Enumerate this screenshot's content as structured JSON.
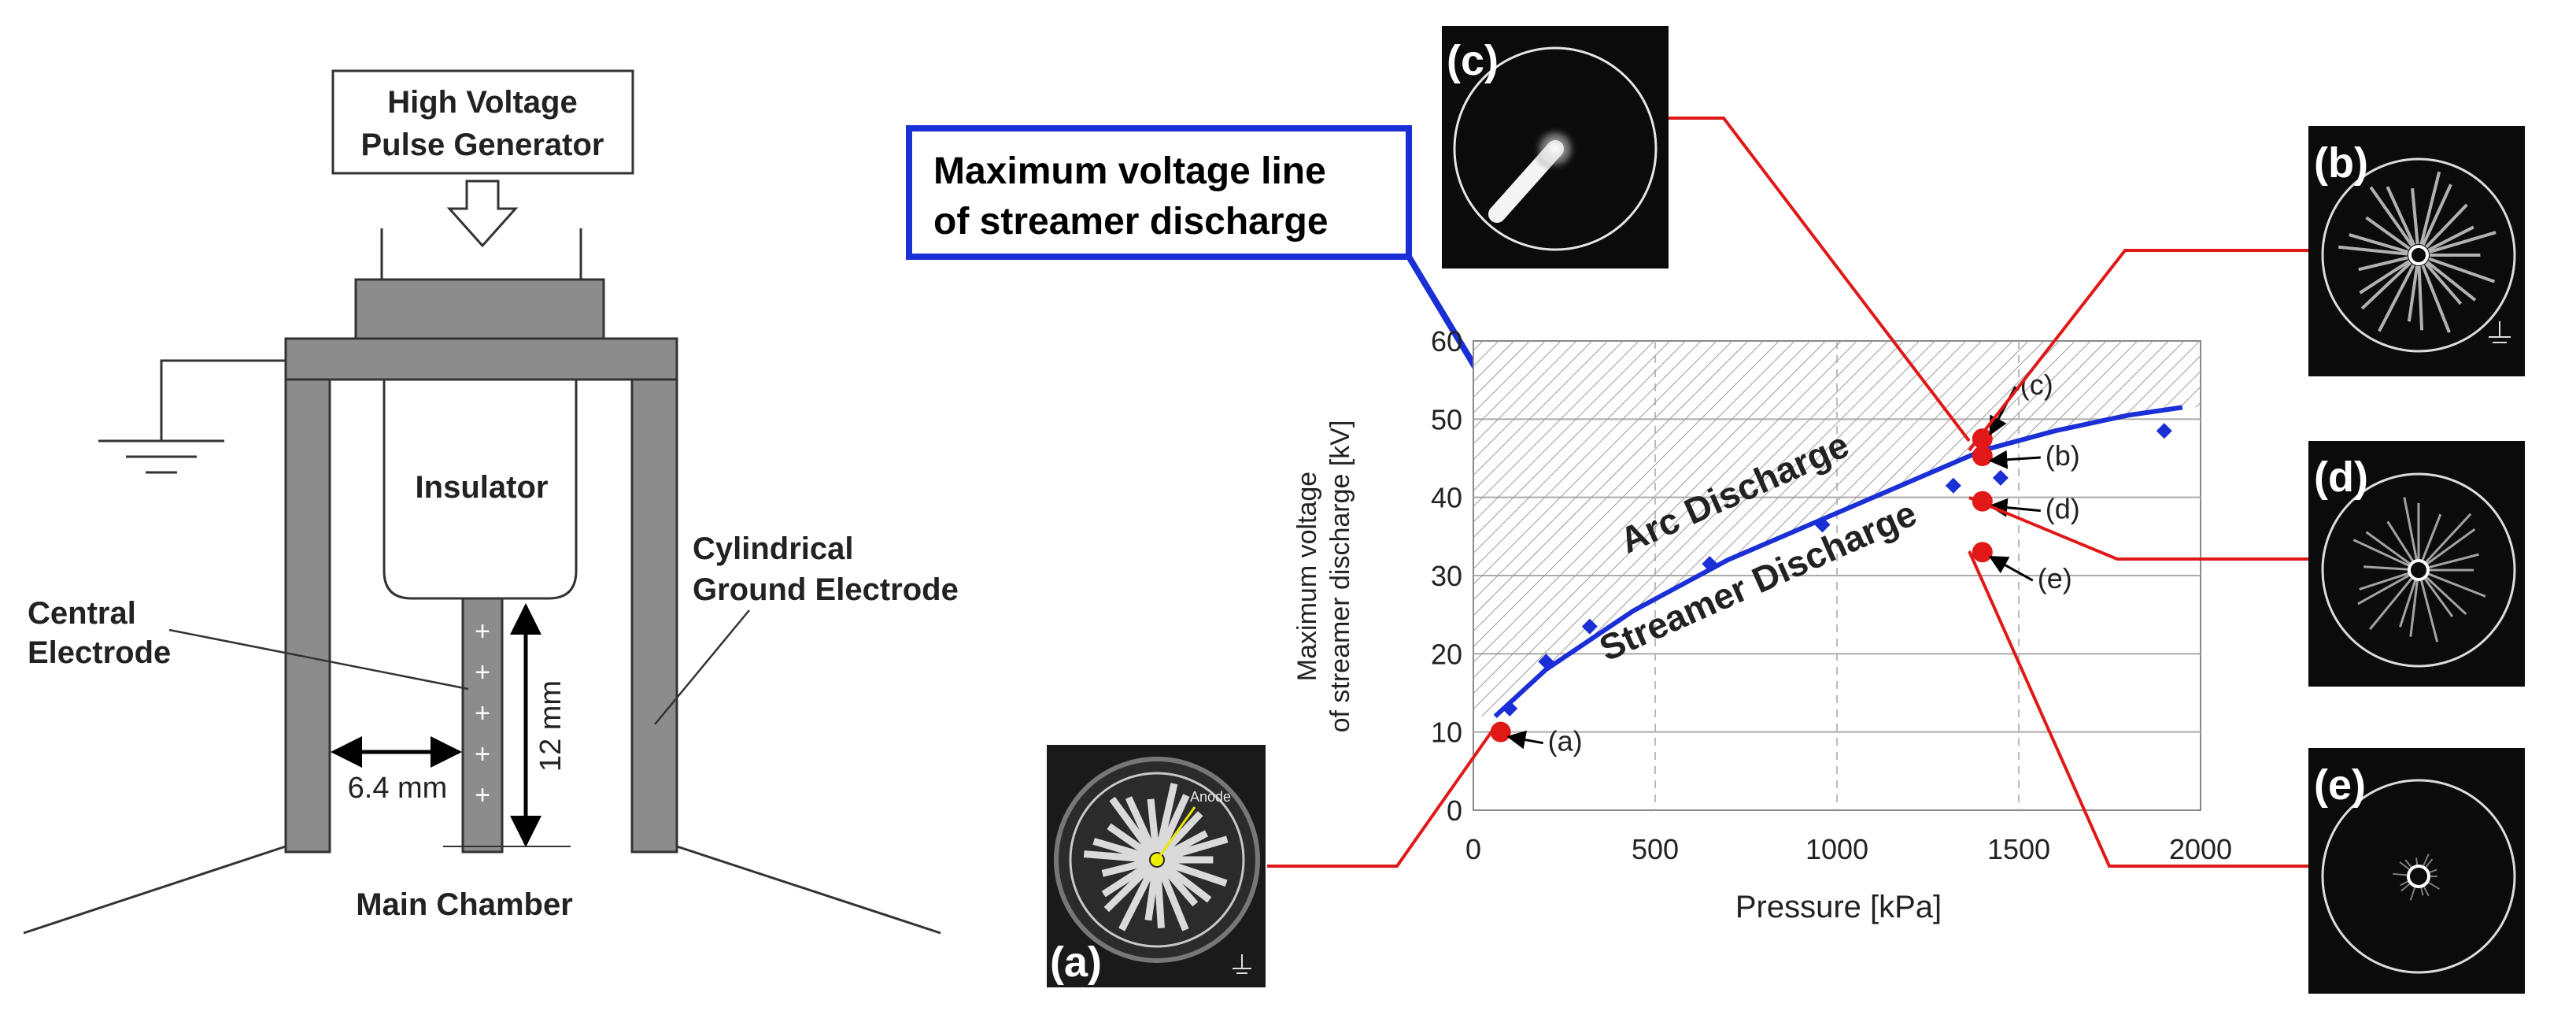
{
  "apparatus": {
    "generator_line1": "High Voltage",
    "generator_line2": "Pulse Generator",
    "insulator": "Insulator",
    "central_line1": "Central",
    "central_line2": "Electrode",
    "ground_line1": "Cylindrical",
    "ground_line2": "Ground Electrode",
    "gap_label": "6.4 mm",
    "length_label": "12 mm",
    "chamber": "Main Chamber",
    "plus_sign": "+"
  },
  "callout": {
    "line1": "Maximum voltage line",
    "line2": "of streamer discharge",
    "color": "#1a2fd6"
  },
  "photos": {
    "a": "(a)",
    "b": "(b)",
    "c": "(c)",
    "d": "(d)",
    "e": "(e)",
    "anode": "Anode"
  },
  "chart_data": {
    "type": "scatter",
    "xlabel": "Pressure [kPa]",
    "ylabel_line1": "Maximum voltage",
    "ylabel_line2": "of streamer discharge [kV]",
    "xlim": [
      0,
      2000
    ],
    "ylim": [
      0,
      60
    ],
    "x_ticks": [
      "0",
      "500",
      "1000",
      "1500",
      "2000"
    ],
    "y_ticks": [
      "0",
      "10",
      "20",
      "30",
      "40",
      "50",
      "60"
    ],
    "region_upper": "Arc Discharge",
    "region_lower": "Streamer Discharge",
    "grid": true,
    "series": [
      {
        "marker": "diamond",
        "color": "#1a2fd6",
        "points": [
          [
            100,
            13
          ],
          [
            200,
            19
          ],
          [
            320,
            23.5
          ],
          [
            650,
            31.5
          ],
          [
            960,
            36.5
          ],
          [
            1320,
            41.5
          ],
          [
            1450,
            42.5
          ],
          [
            1900,
            48.5
          ]
        ]
      }
    ],
    "fit_curve": {
      "color": "#1a2fd6",
      "points": [
        [
          60,
          12
        ],
        [
          200,
          18
        ],
        [
          440,
          25.5
        ],
        [
          700,
          32
        ],
        [
          1000,
          38
        ],
        [
          1200,
          42
        ],
        [
          1400,
          46
        ],
        [
          1600,
          48.5
        ],
        [
          1800,
          50.5
        ],
        [
          1950,
          51.5
        ]
      ]
    },
    "highlights": [
      {
        "label": "(a)",
        "x": 75,
        "y": 10
      },
      {
        "label": "(c)",
        "x": 1400,
        "y": 47.5
      },
      {
        "label": "(b)",
        "x": 1400,
        "y": 45.3
      },
      {
        "label": "(d)",
        "x": 1400,
        "y": 39.5
      },
      {
        "label": "(e)",
        "x": 1400,
        "y": 33
      }
    ],
    "highlight_color": "#e01818"
  }
}
